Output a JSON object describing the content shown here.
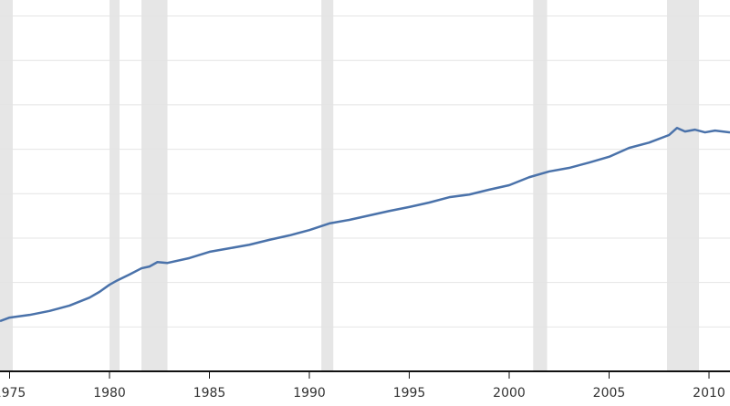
{
  "chart_data": {
    "type": "line",
    "x": [
      1974.52,
      1975,
      1976,
      1977,
      1978,
      1979,
      1979.5,
      1980,
      1980.4,
      1981,
      1981.6,
      1982,
      1982.4,
      1982.9,
      1984,
      1985,
      1986,
      1987,
      1988,
      1989,
      1990,
      1991,
      1992,
      1993,
      1994,
      1995,
      1996,
      1997,
      1998,
      1999,
      2000,
      2001,
      2002,
      2003,
      2004,
      2005,
      2006,
      2007,
      2008,
      2008.4,
      2008.8,
      2009.3,
      2009.8,
      2010.3,
      2011.05
    ],
    "series": [
      {
        "color": "#4a72aa",
        "values": [
          1.13,
          1.21,
          1.27,
          1.36,
          1.48,
          1.66,
          1.79,
          1.95,
          2.05,
          2.18,
          2.32,
          2.36,
          2.46,
          2.44,
          2.55,
          2.69,
          2.77,
          2.85,
          2.96,
          3.06,
          3.18,
          3.33,
          3.41,
          3.51,
          3.61,
          3.7,
          3.8,
          3.92,
          3.98,
          4.09,
          4.19,
          4.37,
          4.5,
          4.58,
          4.7,
          4.83,
          5.03,
          5.15,
          5.32,
          5.48,
          5.4,
          5.44,
          5.38,
          5.42,
          5.38
        ]
      }
    ],
    "xlim": [
      1974.52,
      2011.05
    ],
    "xticks": [
      1975,
      1980,
      1985,
      1990,
      1995,
      2000,
      2005,
      2010
    ],
    "ylim": [
      0,
      8.36
    ],
    "grid_values": [
      1,
      2,
      3,
      4,
      5,
      6,
      7,
      8
    ],
    "recessions": [
      [
        1973.9,
        1975.16
      ],
      [
        1980.0,
        1980.5
      ],
      [
        1981.6,
        1982.9
      ],
      [
        1990.6,
        1991.2
      ],
      [
        2001.2,
        2001.9
      ],
      [
        2007.9,
        2009.5
      ]
    ],
    "recession_color": "#e6e6e6"
  }
}
